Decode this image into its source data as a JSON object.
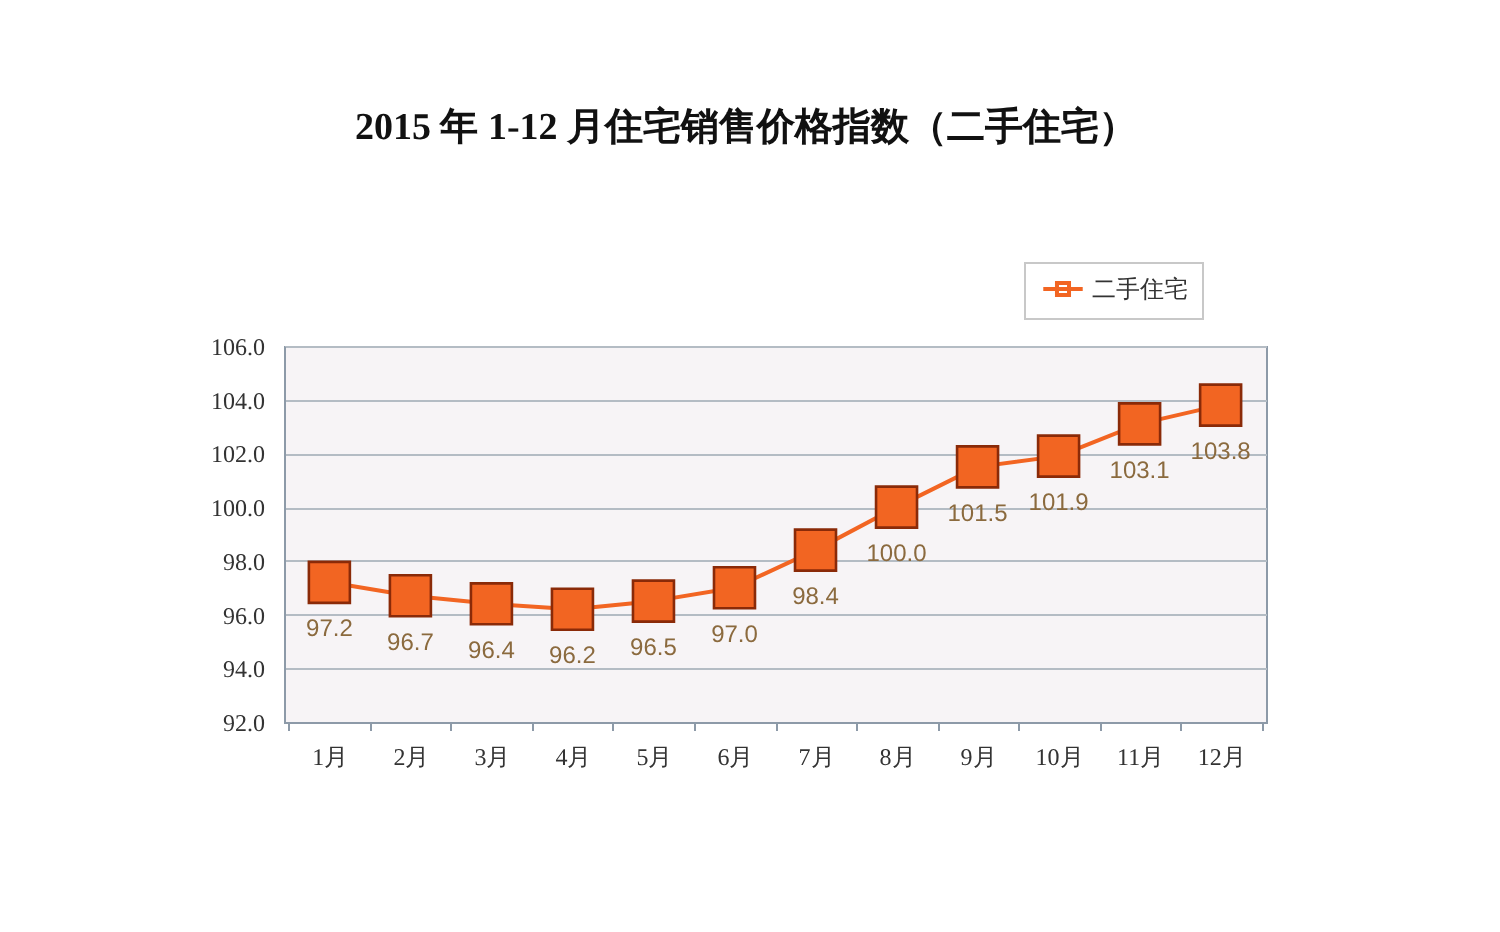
{
  "chart_data": {
    "type": "line",
    "title": "2015 年 1-12 月住宅销售价格指数（二手住宅）",
    "categories": [
      "1月",
      "2月",
      "3月",
      "4月",
      "5月",
      "6月",
      "7月",
      "8月",
      "9月",
      "10月",
      "11月",
      "12月"
    ],
    "series": [
      {
        "name": "二手住宅",
        "color": "#f26522",
        "values": [
          97.2,
          96.7,
          96.4,
          96.2,
          96.5,
          97.0,
          98.4,
          100.0,
          101.5,
          101.9,
          103.1,
          103.8
        ],
        "value_labels": [
          "97.2",
          "96.7",
          "96.4",
          "96.2",
          "96.5",
          "97.0",
          "98.4",
          "100.0",
          "101.5",
          "101.9",
          "103.1",
          "103.8"
        ]
      }
    ],
    "ylim": [
      92,
      106
    ],
    "yticks": [
      {
        "value": 92,
        "label": "92.0"
      },
      {
        "value": 94,
        "label": "94.0"
      },
      {
        "value": 96,
        "label": "96.0"
      },
      {
        "value": 98,
        "label": "98.0"
      },
      {
        "value": 100,
        "label": "100.0"
      },
      {
        "value": 102,
        "label": "102.0"
      },
      {
        "value": 104,
        "label": "104.0"
      },
      {
        "value": 106,
        "label": "106.0"
      }
    ],
    "grid": "y",
    "legend": "top right",
    "marker": "square",
    "line_style": "solid"
  }
}
